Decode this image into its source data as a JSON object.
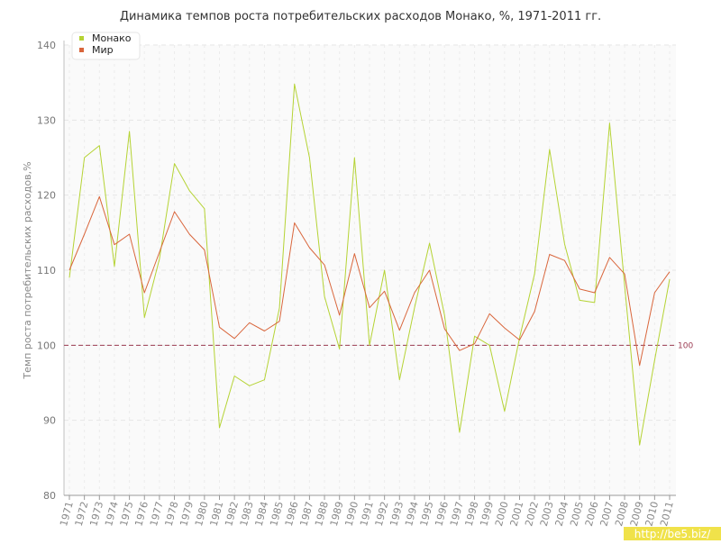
{
  "chart_data": {
    "type": "line",
    "title": "Динамика темпов роста потребительских расходов Монако, %, 1971-2011 гг.",
    "ylabel": "Темп роста потребительских расходов,%",
    "xlabel": "",
    "ylim": [
      80,
      140
    ],
    "yticks": [
      80,
      90,
      100,
      110,
      120,
      130,
      140
    ],
    "grid": true,
    "legend_position": "top-left",
    "reference_line": {
      "value": 100,
      "label": "100",
      "color": "#9b3b52"
    },
    "x": [
      1971,
      1972,
      1973,
      1974,
      1975,
      1976,
      1977,
      1978,
      1979,
      1980,
      1981,
      1982,
      1983,
      1984,
      1985,
      1986,
      1987,
      1988,
      1989,
      1990,
      1991,
      1992,
      1993,
      1994,
      1995,
      1996,
      1997,
      1998,
      1999,
      2000,
      2001,
      2002,
      2003,
      2004,
      2005,
      2006,
      2007,
      2008,
      2009,
      2010,
      2011
    ],
    "series": [
      {
        "name": "Монако",
        "color": "#b5d334",
        "values": [
          109,
          125,
          126.6,
          110.5,
          128.5,
          103.7,
          111.5,
          124.2,
          120.6,
          118.2,
          89,
          95.9,
          94.6,
          95.4,
          105,
          134.8,
          125,
          106.5,
          99.5,
          125,
          100,
          110,
          95.4,
          105,
          113.6,
          104,
          88.4,
          101.2,
          100,
          91.2,
          101,
          109.5,
          126.1,
          113.5,
          106,
          105.7,
          129.6,
          108,
          86.7,
          98,
          108.8
        ]
      },
      {
        "name": "Мир",
        "color": "#d9663c",
        "values": [
          110,
          114.8,
          119.8,
          113.4,
          114.8,
          107,
          112.4,
          117.8,
          114.8,
          112.7,
          102.4,
          100.9,
          103,
          101.9,
          103.2,
          116.3,
          113,
          110.7,
          104,
          112.2,
          105,
          107.2,
          102,
          107,
          110,
          102.2,
          99.3,
          100.2,
          104.2,
          102.3,
          100.7,
          104.5,
          112.1,
          111.3,
          107.5,
          107,
          111.7,
          109.5,
          97.3,
          107,
          109.8
        ]
      }
    ]
  },
  "watermark": {
    "text": "http://be5.biz/",
    "color": "#f0e24a"
  }
}
